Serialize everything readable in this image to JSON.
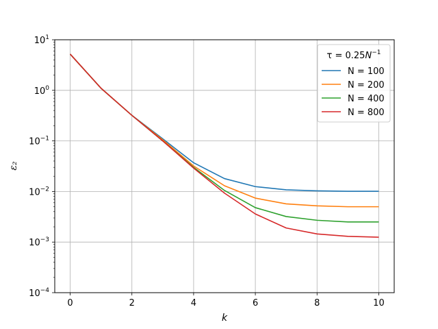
{
  "chart_data": {
    "type": "line",
    "title": "",
    "xlabel": "k",
    "ylabel": "ε₂",
    "xlim": [
      -0.5,
      10.5
    ],
    "ylim": [
      0.0001,
      10
    ],
    "yscale": "log",
    "grid": true,
    "x_ticks": [
      0,
      2,
      4,
      6,
      8,
      10
    ],
    "x_tick_labels": [
      "0",
      "2",
      "4",
      "6",
      "8",
      "10"
    ],
    "y_ticks": [
      0.0001,
      0.001,
      0.01,
      0.1,
      1,
      10
    ],
    "y_tick_labels": [
      {
        "base": "10",
        "exp": "−4"
      },
      {
        "base": "10",
        "exp": "−3"
      },
      {
        "base": "10",
        "exp": "−2"
      },
      {
        "base": "10",
        "exp": "−1"
      },
      {
        "base": "10",
        "exp": "0"
      },
      {
        "base": "10",
        "exp": "1"
      }
    ],
    "legend": {
      "title": {
        "prefix": "τ = 0.25",
        "base": "N",
        "exp": "−1"
      },
      "placement": "top-right"
    },
    "x": [
      0,
      1,
      2,
      3,
      4,
      5,
      6,
      7,
      8,
      9,
      10
    ],
    "series": [
      {
        "name": "N = 100",
        "color": "#1f77b4",
        "values": [
          5.2,
          1.1,
          0.32,
          0.11,
          0.037,
          0.018,
          0.0125,
          0.0108,
          0.0103,
          0.0101,
          0.0101
        ]
      },
      {
        "name": "N = 200",
        "color": "#ff7f0e",
        "values": [
          5.2,
          1.1,
          0.32,
          0.105,
          0.032,
          0.013,
          0.0074,
          0.0057,
          0.0052,
          0.005,
          0.005
        ]
      },
      {
        "name": "N = 400",
        "color": "#2ca02c",
        "values": [
          5.2,
          1.1,
          0.32,
          0.1,
          0.03,
          0.0105,
          0.0048,
          0.0032,
          0.0027,
          0.0025,
          0.0025
        ]
      },
      {
        "name": "N = 800",
        "color": "#d62728",
        "values": [
          5.2,
          1.1,
          0.32,
          0.1,
          0.029,
          0.0093,
          0.0036,
          0.0019,
          0.00145,
          0.0013,
          0.00125
        ]
      }
    ]
  }
}
